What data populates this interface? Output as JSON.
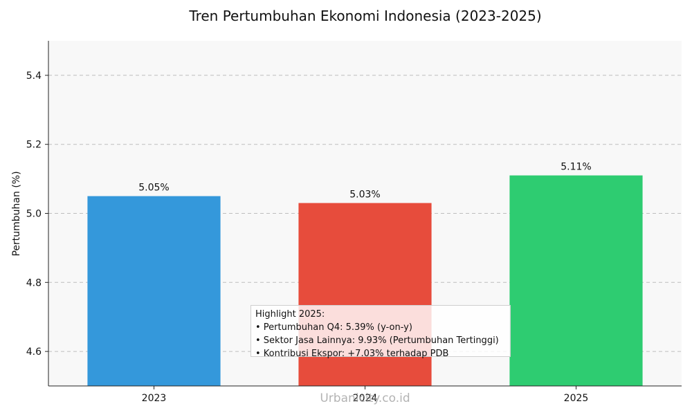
{
  "chart_data": {
    "type": "bar",
    "title": "Tren Pertumbuhan Ekonomi Indonesia (2023-2025)",
    "xlabel": "",
    "ylabel": "Pertumbuhan (%)",
    "categories": [
      "2023",
      "2024",
      "2025"
    ],
    "values": [
      5.05,
      5.03,
      5.11
    ],
    "value_labels": [
      "5.05%",
      "5.03%",
      "5.11%"
    ],
    "colors": [
      "#3498db",
      "#e74c3c",
      "#2ecc71"
    ],
    "ylim": [
      4.5,
      5.5
    ],
    "yticks": [
      4.6,
      4.8,
      5.0,
      5.2,
      5.4
    ],
    "ytick_labels": [
      "4.6",
      "4.8",
      "5.0",
      "5.2",
      "5.4"
    ],
    "grid": "y-dashed",
    "background": "#f8f8f8"
  },
  "highlight": {
    "title": "Highlight 2025:",
    "lines": [
      "• Pertumbuhan Q4: 5.39% (y-on-y)",
      "• Sektor Jasa Lainnya: 9.93% (Pertumbuhan Tertinggi)",
      "• Kontribusi Ekspor: +7.03% terhadap PDB"
    ]
  },
  "watermark": "Urbanicity.co.id"
}
